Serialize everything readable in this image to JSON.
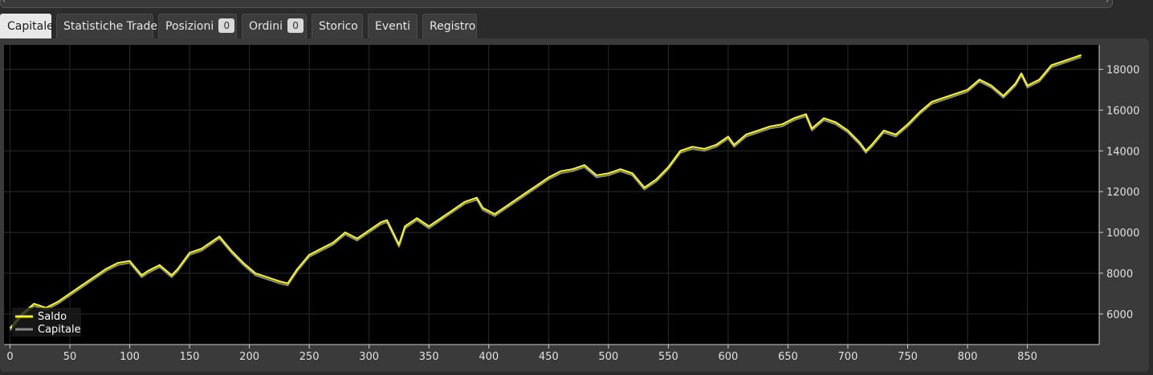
{
  "tabs": [
    {
      "label": "Capitale",
      "active": true
    },
    {
      "label": "Statistiche Trade",
      "active": false
    },
    {
      "label": "Posizioni",
      "badge": "0",
      "active": false
    },
    {
      "label": "Ordini",
      "badge": "0",
      "active": false
    },
    {
      "label": "Storico",
      "active": false
    },
    {
      "label": "Eventi",
      "active": false
    },
    {
      "label": "Registro",
      "active": false
    }
  ],
  "colors": {
    "saldo": "#f2f22a",
    "capitale": "#8c8c8c",
    "plot_background": "#000000",
    "grid": "#2a2a2a"
  },
  "chart_data": {
    "type": "line",
    "x_ticks": [
      0,
      50,
      100,
      150,
      200,
      250,
      300,
      350,
      400,
      450,
      500,
      550,
      600,
      650,
      700,
      750,
      800,
      850
    ],
    "y_ticks": [
      6000,
      8000,
      10000,
      12000,
      14000,
      16000,
      18000
    ],
    "xlim": [
      -5,
      910
    ],
    "ylim": [
      4500,
      19200
    ],
    "grid": true,
    "legend_position": "bottom-left",
    "series": [
      {
        "name": "Saldo",
        "x": [
          0,
          10,
          20,
          30,
          40,
          50,
          60,
          70,
          80,
          90,
          100,
          110,
          115,
          125,
          135,
          140,
          150,
          160,
          170,
          175,
          185,
          195,
          205,
          215,
          225,
          232,
          240,
          250,
          260,
          270,
          280,
          290,
          300,
          310,
          315,
          325,
          330,
          340,
          350,
          360,
          370,
          380,
          390,
          395,
          405,
          410,
          420,
          430,
          440,
          450,
          460,
          470,
          480,
          490,
          500,
          510,
          520,
          530,
          540,
          550,
          560,
          570,
          580,
          590,
          600,
          605,
          615,
          625,
          635,
          645,
          655,
          665,
          670,
          680,
          690,
          700,
          710,
          715,
          720,
          730,
          740,
          750,
          760,
          770,
          780,
          790,
          800,
          810,
          820,
          830,
          840,
          845,
          850,
          860,
          870,
          880,
          890,
          895
        ],
        "values": [
          5300,
          6000,
          6500,
          6300,
          6600,
          7000,
          7400,
          7800,
          8200,
          8500,
          8600,
          7900,
          8100,
          8400,
          7900,
          8200,
          9000,
          9200,
          9600,
          9800,
          9100,
          8500,
          8000,
          7800,
          7600,
          7500,
          8200,
          8900,
          9200,
          9500,
          10000,
          9700,
          10100,
          10500,
          10600,
          9400,
          10300,
          10700,
          10300,
          10700,
          11100,
          11500,
          11700,
          11200,
          10900,
          11100,
          11500,
          11900,
          12300,
          12700,
          13000,
          13100,
          13300,
          12800,
          12900,
          13100,
          12900,
          12200,
          12600,
          13200,
          14000,
          14200,
          14100,
          14300,
          14700,
          14300,
          14800,
          15000,
          15200,
          15300,
          15600,
          15800,
          15100,
          15600,
          15400,
          15000,
          14400,
          14000,
          14300,
          15000,
          14800,
          15300,
          15900,
          16400,
          16600,
          16800,
          17000,
          17500,
          17200,
          16700,
          17300,
          17800,
          17200,
          17500,
          18200,
          18400,
          18600,
          18700
        ]
      },
      {
        "name": "Capitale",
        "x": [
          0,
          10,
          20,
          30,
          40,
          50,
          60,
          70,
          80,
          90,
          100,
          110,
          115,
          125,
          135,
          140,
          150,
          160,
          170,
          175,
          185,
          195,
          205,
          215,
          225,
          232,
          240,
          250,
          260,
          270,
          280,
          290,
          300,
          310,
          315,
          325,
          330,
          340,
          350,
          360,
          370,
          380,
          390,
          395,
          405,
          410,
          420,
          430,
          440,
          450,
          460,
          470,
          480,
          490,
          500,
          510,
          520,
          530,
          540,
          550,
          560,
          570,
          580,
          590,
          600,
          605,
          615,
          625,
          635,
          645,
          655,
          665,
          670,
          680,
          690,
          700,
          710,
          715,
          720,
          730,
          740,
          750,
          760,
          770,
          780,
          790,
          800,
          810,
          820,
          830,
          840,
          845,
          850,
          860,
          870,
          880,
          890,
          895
        ],
        "values": [
          5200,
          5900,
          6400,
          6200,
          6500,
          6900,
          7300,
          7700,
          8100,
          8400,
          8500,
          7800,
          8000,
          8300,
          7800,
          8100,
          8900,
          9100,
          9500,
          9700,
          9000,
          8400,
          7900,
          7700,
          7500,
          7400,
          8100,
          8800,
          9100,
          9400,
          9900,
          9600,
          10000,
          10400,
          10500,
          9300,
          10200,
          10600,
          10200,
          10600,
          11000,
          11400,
          11600,
          11100,
          10800,
          11000,
          11400,
          11800,
          12200,
          12600,
          12900,
          13000,
          13200,
          12700,
          12800,
          13000,
          12800,
          12100,
          12500,
          13100,
          13900,
          14100,
          14000,
          14200,
          14600,
          14200,
          14700,
          14900,
          15100,
          15200,
          15500,
          15700,
          15000,
          15500,
          15300,
          14900,
          14300,
          13900,
          14200,
          14900,
          14700,
          15200,
          15800,
          16300,
          16500,
          16700,
          16900,
          17400,
          17100,
          16600,
          17200,
          17700,
          17100,
          17400,
          18100,
          18300,
          18500,
          18600
        ]
      }
    ]
  }
}
